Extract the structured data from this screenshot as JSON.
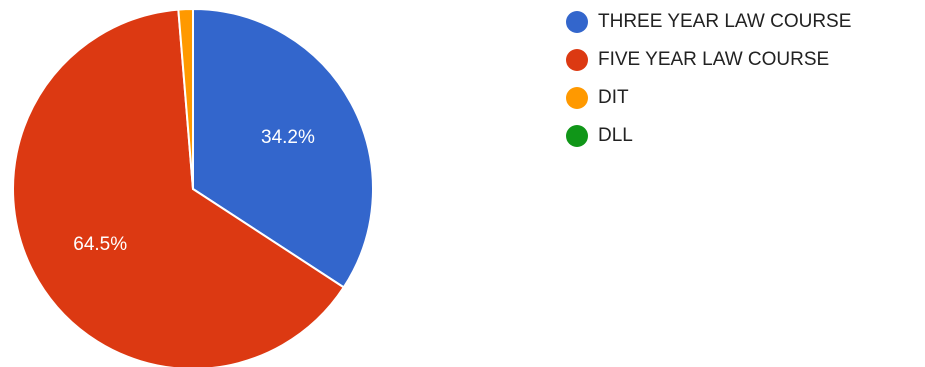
{
  "chart_data": {
    "type": "pie",
    "title": "",
    "start_angle_deg": 90,
    "direction": "clockwise",
    "legend_position": "right",
    "slices": [
      {
        "label": "THREE YEAR LAW COURSE",
        "value": 34.2,
        "display": "34.2%",
        "color": "#3366cc"
      },
      {
        "label": "FIVE YEAR LAW COURSE",
        "value": 64.5,
        "display": "64.5%",
        "color": "#dc3912"
      },
      {
        "label": "DIT",
        "value": 1.3,
        "display": "",
        "color": "#ff9900"
      },
      {
        "label": "DLL",
        "value": 0,
        "display": "",
        "color": "#109618"
      }
    ]
  }
}
